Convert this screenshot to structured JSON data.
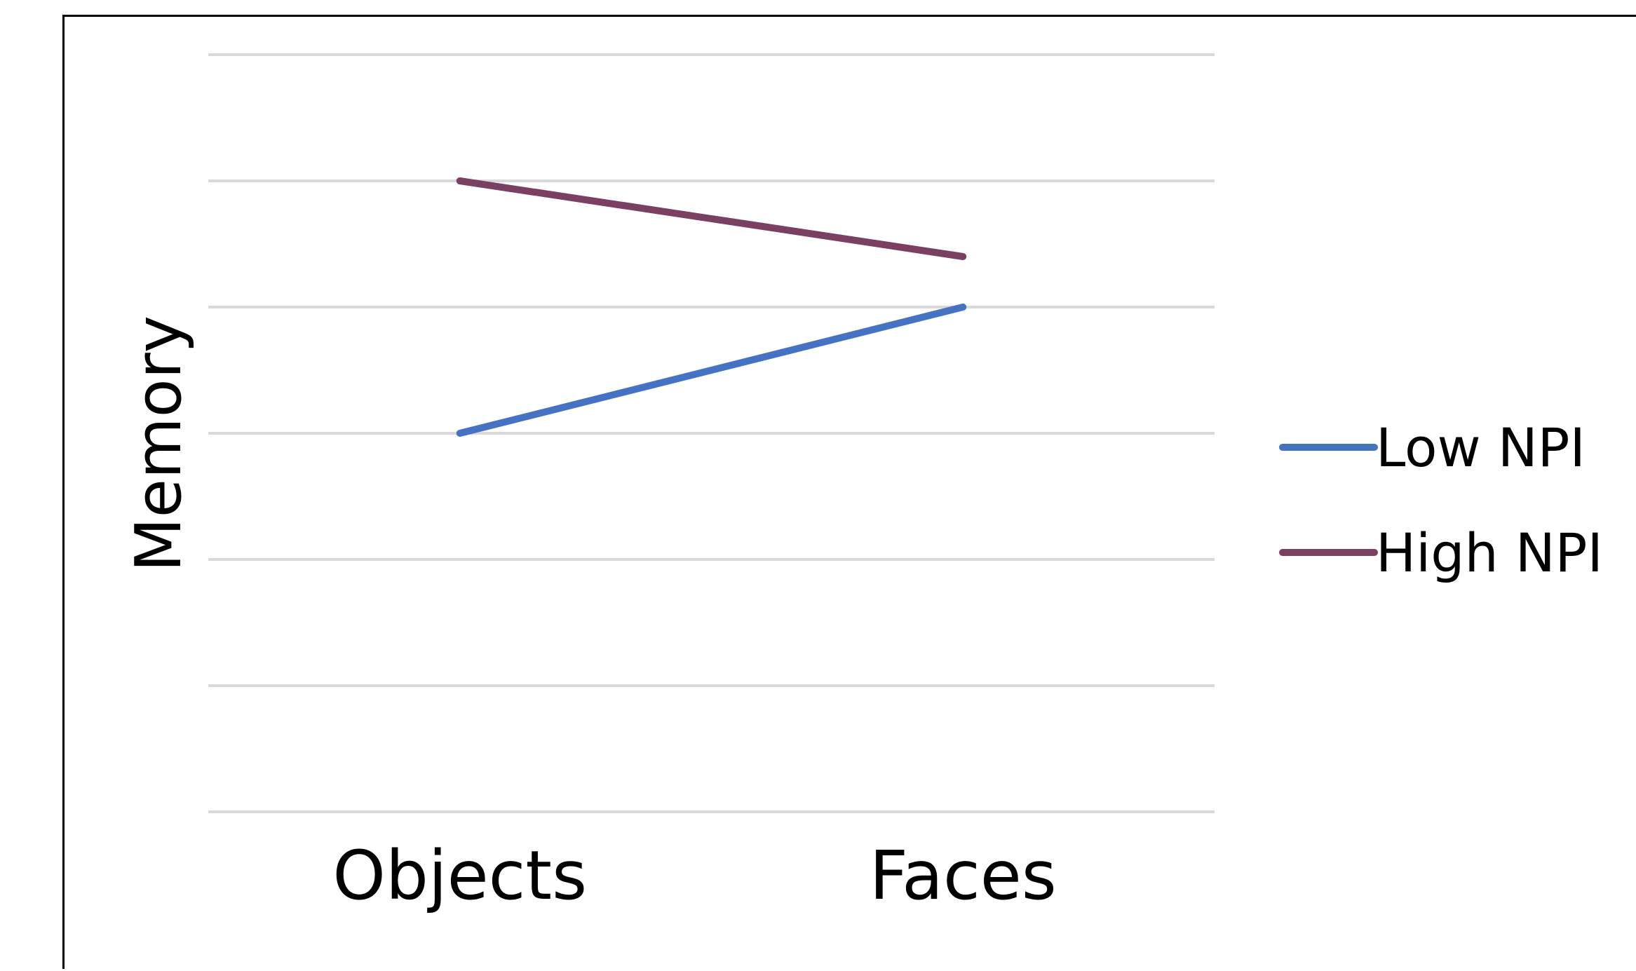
{
  "chart_data": {
    "type": "line",
    "title": "",
    "xlabel": "",
    "ylabel": "Memory",
    "categories": [
      "Objects",
      "Faces"
    ],
    "ylim": [
      0,
      6
    ],
    "y_ticks_labeled": false,
    "grid": true,
    "legend_position": "right",
    "series": [
      {
        "name": "Low NPI",
        "values": [
          3.0,
          4.0
        ],
        "color": "#4472C4"
      },
      {
        "name": "High NPI",
        "values": [
          5.0,
          4.4
        ],
        "color": "#7B3F61"
      }
    ]
  }
}
